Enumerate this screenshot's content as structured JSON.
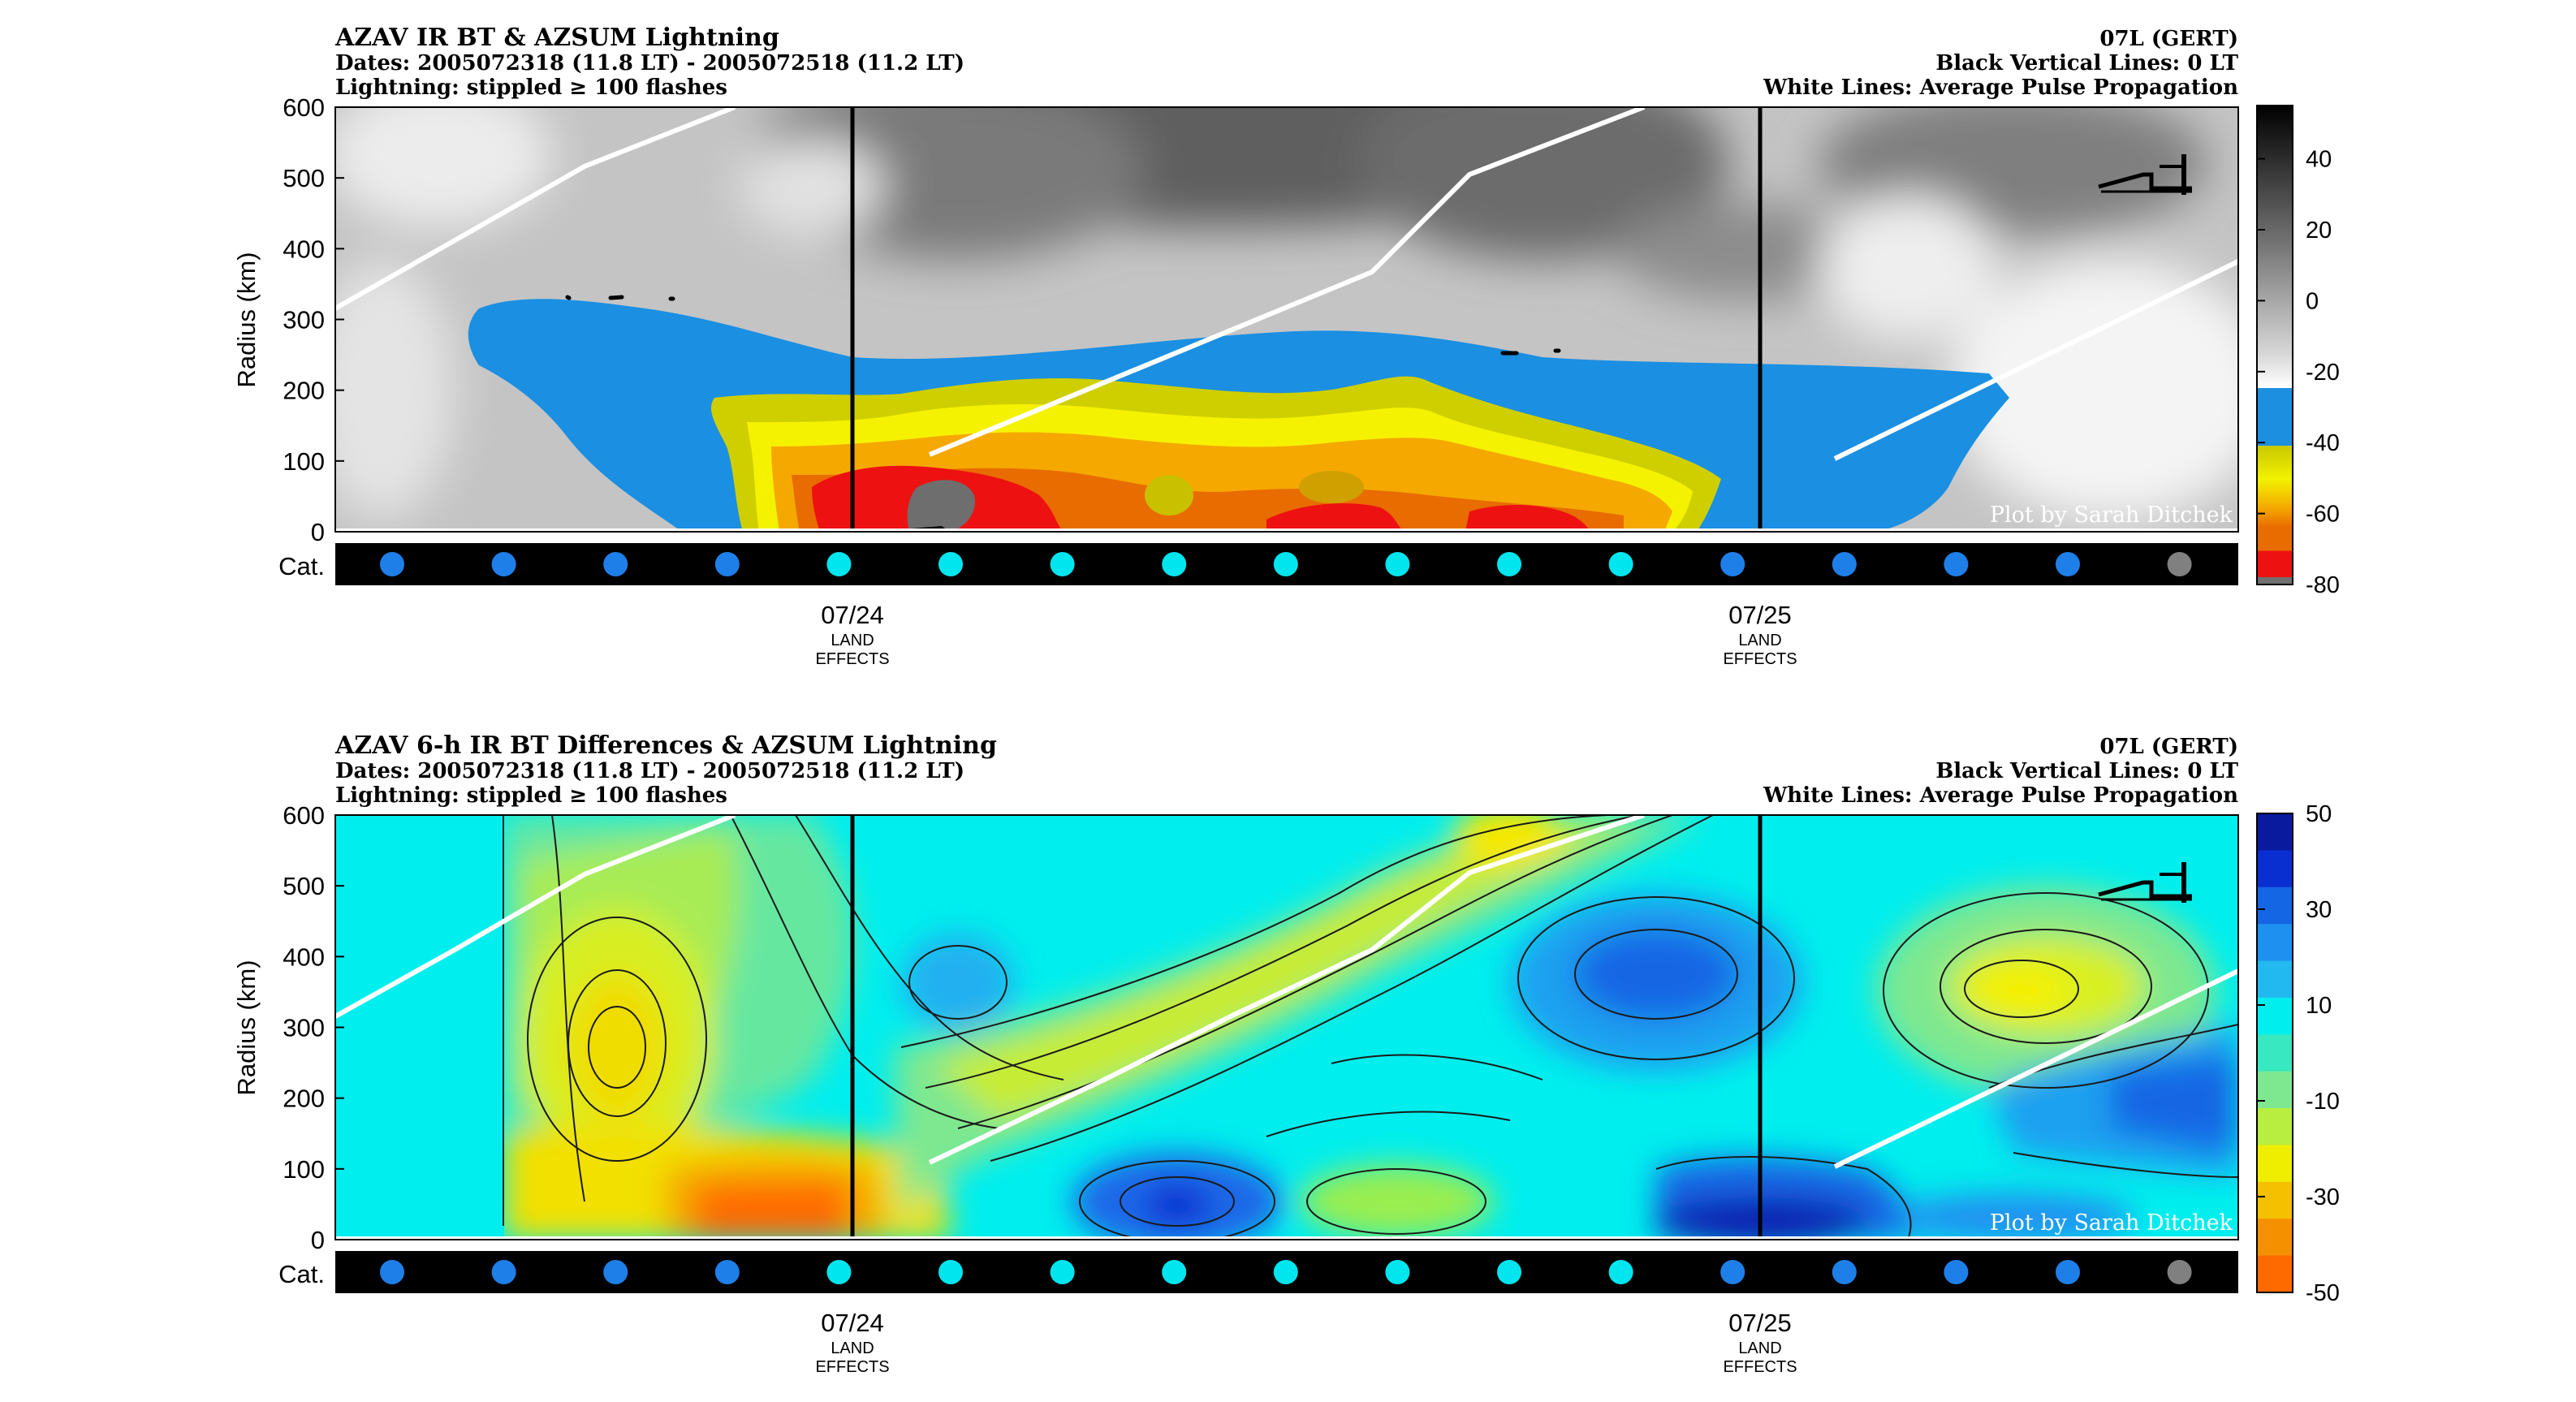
{
  "chart_data": [
    {
      "type": "heatmap",
      "title": "AZAV IR BT & AZSUM Lightning",
      "subtitle_dates": "Dates: 2005072318 (11.8 LT) - 2005072518 (11.2 LT)",
      "subtitle_lightning": "Lightning: stippled ≥ 100 flashes",
      "storm_label": "07L (GERT)",
      "vertical_lines_note": "Black Vertical Lines: 0 LT",
      "white_lines_note": "White Lines: Average Pulse Propagation",
      "ylabel": "Radius (km)",
      "yticks": [
        "600",
        "500",
        "400",
        "300",
        "200",
        "100",
        "0"
      ],
      "ylim": [
        0,
        600
      ],
      "xtick_labels": [
        "07/24",
        "07/25"
      ],
      "xtick_notes": [
        "LAND",
        "EFFECTS"
      ],
      "category_label": "Cat.",
      "colorbar_ticks": [
        "40",
        "20",
        "0",
        "-20",
        "-40",
        "-60",
        "-80"
      ],
      "colorbar_range": [
        -80,
        55
      ],
      "credit": "Plot by Sarah Ditchek",
      "grid": false
    },
    {
      "type": "heatmap",
      "title": "AZAV 6-h IR BT Differences & AZSUM Lightning",
      "subtitle_dates": "Dates: 2005072318 (11.8 LT) - 2005072518 (11.2 LT)",
      "subtitle_lightning": "Lightning: stippled ≥ 100 flashes",
      "storm_label": "07L (GERT)",
      "vertical_lines_note": "Black Vertical Lines: 0 LT",
      "white_lines_note": "White Lines: Average Pulse Propagation",
      "ylabel": "Radius (km)",
      "yticks": [
        "600",
        "500",
        "400",
        "300",
        "200",
        "100",
        "0"
      ],
      "ylim": [
        0,
        600
      ],
      "xtick_labels": [
        "07/24",
        "07/25"
      ],
      "xtick_notes": [
        "LAND",
        "EFFECTS"
      ],
      "category_label": "Cat.",
      "colorbar_ticks": [
        "50",
        "30",
        "10",
        "-10",
        "-30",
        "-50"
      ],
      "colorbar_range": [
        -50,
        50
      ],
      "credit": "Plot by Sarah Ditchek",
      "grid": false
    }
  ],
  "category_dots": [
    "#1f7fe8",
    "#1f7fe8",
    "#1f7fe8",
    "#1f7fe8",
    "#00e5ee",
    "#00e5ee",
    "#00e5ee",
    "#00e5ee",
    "#00e5ee",
    "#00e5ee",
    "#00e5ee",
    "#00e5ee",
    "#1f7fe8",
    "#1f7fe8",
    "#1f7fe8",
    "#1f7fe8",
    "#808080"
  ],
  "colors": {
    "cat_ts": "#00e5ee",
    "cat_td": "#1f7fe8",
    "cat_low": "#808080",
    "pulse_line": "#ffffff",
    "zero_lt_line": "#000000"
  }
}
